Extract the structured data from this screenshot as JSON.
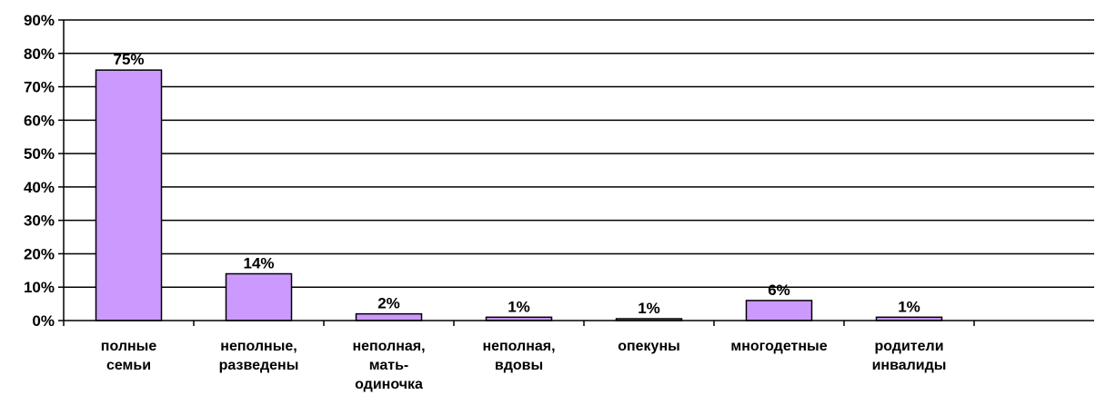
{
  "chart_data": {
    "type": "bar",
    "title": "",
    "categories": [
      [
        "полные",
        "семьи"
      ],
      [
        "неполные,",
        "разведены"
      ],
      [
        "неполная,",
        "мать-",
        "одиночка"
      ],
      [
        "неполная,",
        "вдовы"
      ],
      [
        "опекуны"
      ],
      [
        "многодетные"
      ],
      [
        "родители",
        "инвалиды"
      ]
    ],
    "values": [
      75,
      14,
      2,
      1,
      0.5,
      6,
      1
    ],
    "data_labels": [
      "75%",
      "14%",
      "2%",
      "1%",
      "1%",
      "6%",
      "1%"
    ],
    "ylim": [
      0,
      90
    ],
    "yticks": [
      0,
      10,
      20,
      30,
      40,
      50,
      60,
      70,
      80,
      90
    ],
    "ytick_labels": [
      "0%",
      "10%",
      "20%",
      "30%",
      "40%",
      "50%",
      "60%",
      "70%",
      "80%",
      "90%"
    ],
    "grid": true,
    "legend": false,
    "colors": {
      "bar": "#CC99FF",
      "stroke": "#000000"
    }
  }
}
